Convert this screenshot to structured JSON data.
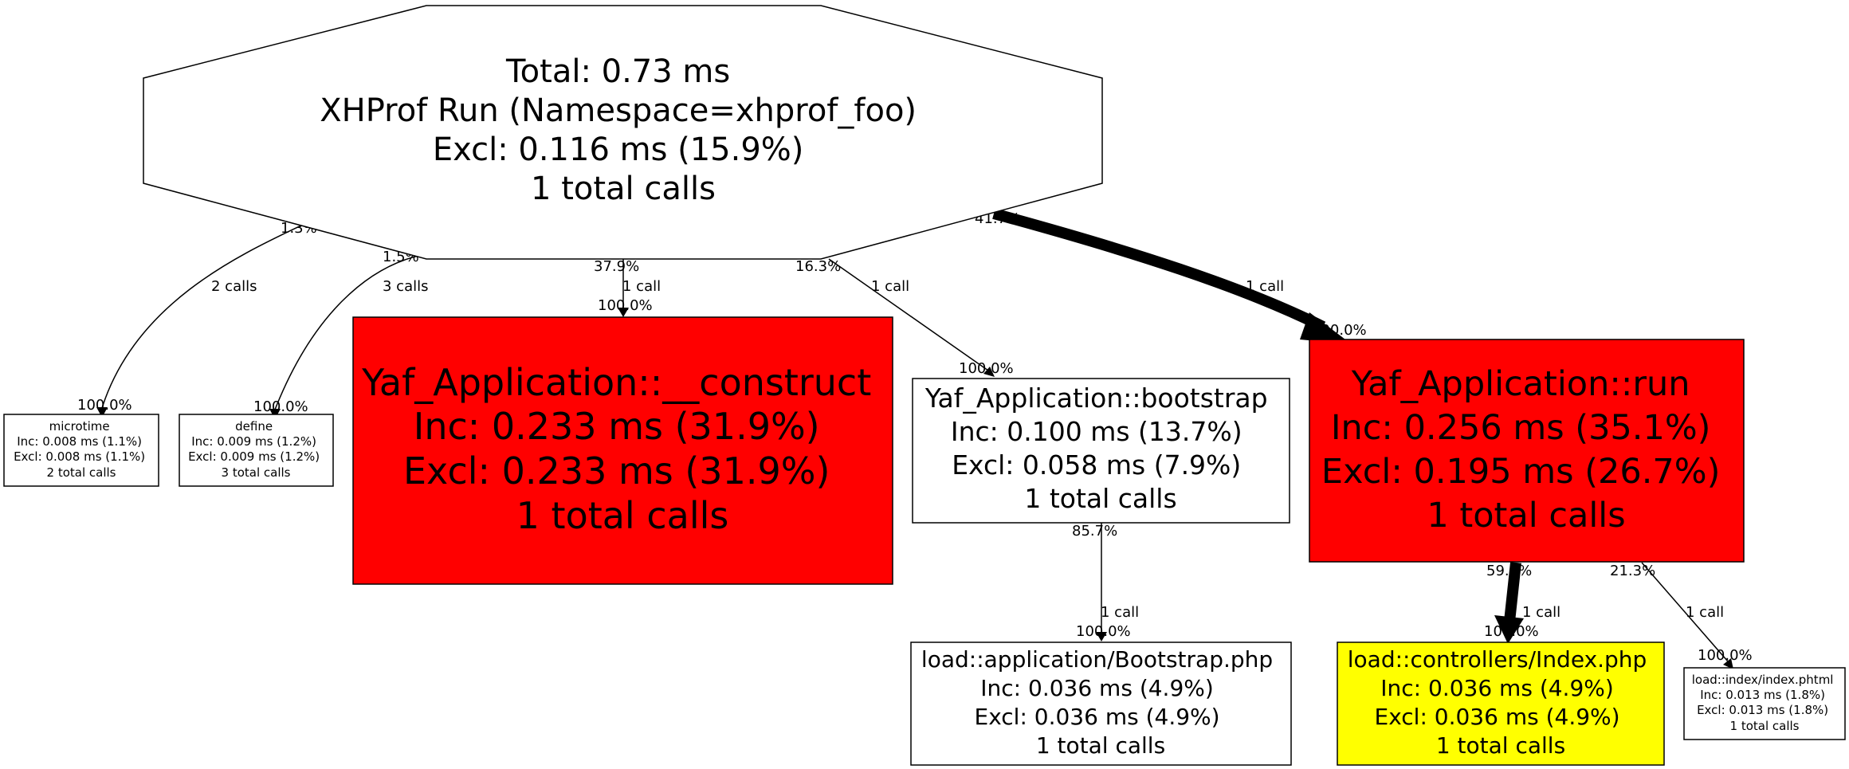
{
  "nodes": {
    "root": {
      "lines": [
        "Total: 0.73 ms",
        "XHProf Run (Namespace=xhprof_foo)",
        "Excl: 0.116 ms (15.9%)",
        "1 total calls"
      ],
      "fill": "#ffffff"
    },
    "microtime": {
      "lines": [
        "microtime",
        "Inc: 0.008 ms (1.1%)",
        "Excl: 0.008 ms (1.1%)",
        "2 total calls"
      ],
      "fill": "#ffffff"
    },
    "define": {
      "lines": [
        "define",
        "Inc: 0.009 ms (1.2%)",
        "Excl: 0.009 ms (1.2%)",
        "3 total calls"
      ],
      "fill": "#ffffff"
    },
    "construct": {
      "lines": [
        "Yaf_Application::__construct",
        "Inc: 0.233 ms (31.9%)",
        "Excl: 0.233 ms (31.9%)",
        "1 total calls"
      ],
      "fill": "#ff0000"
    },
    "bootstrap": {
      "lines": [
        "Yaf_Application::bootstrap",
        "Inc: 0.100 ms (13.7%)",
        "Excl: 0.058 ms (7.9%)",
        "1 total calls"
      ],
      "fill": "#ffffff"
    },
    "run": {
      "lines": [
        "Yaf_Application::run",
        "Inc: 0.256 ms (35.1%)",
        "Excl: 0.195 ms (26.7%)",
        "1 total calls"
      ],
      "fill": "#ff0000"
    },
    "bootstrap_php": {
      "lines": [
        "load::application/Bootstrap.php",
        "Inc: 0.036 ms (4.9%)",
        "Excl: 0.036 ms (4.9%)",
        "1 total calls"
      ],
      "fill": "#ffffff"
    },
    "index_php": {
      "lines": [
        "load::controllers/Index.php",
        "Inc: 0.036 ms (4.9%)",
        "Excl: 0.036 ms (4.9%)",
        "1 total calls"
      ],
      "fill": "#ffff00"
    },
    "index_phtml": {
      "lines": [
        "load::index/index.phtml",
        "Inc: 0.013 ms (1.8%)",
        "Excl: 0.013 ms (1.8%)",
        "1 total calls"
      ],
      "fill": "#ffffff"
    }
  },
  "edges": {
    "root_microtime": {
      "tail": "1.3%",
      "calls": "2 calls",
      "head": "100.0%"
    },
    "root_define": {
      "tail": "1.5%",
      "calls": "3 calls",
      "head": "100.0%"
    },
    "root_construct": {
      "tail": "37.9%",
      "calls": "1 call",
      "head": "100.0%"
    },
    "root_bootstrap": {
      "tail": "16.3%",
      "calls": "1 call",
      "head": "100.0%"
    },
    "root_run": {
      "tail": "41.7%",
      "calls": "1 call",
      "head": "100.0%"
    },
    "bootstrap_bootstrapphp": {
      "tail": "85.7%",
      "calls": "1 call",
      "head": "100.0%"
    },
    "run_indexphp": {
      "tail": "59.5%",
      "calls": "1 call",
      "head": "100.0%"
    },
    "run_indexphtml": {
      "tail": "21.3%",
      "calls": "1 call",
      "head": "100.0%"
    }
  }
}
